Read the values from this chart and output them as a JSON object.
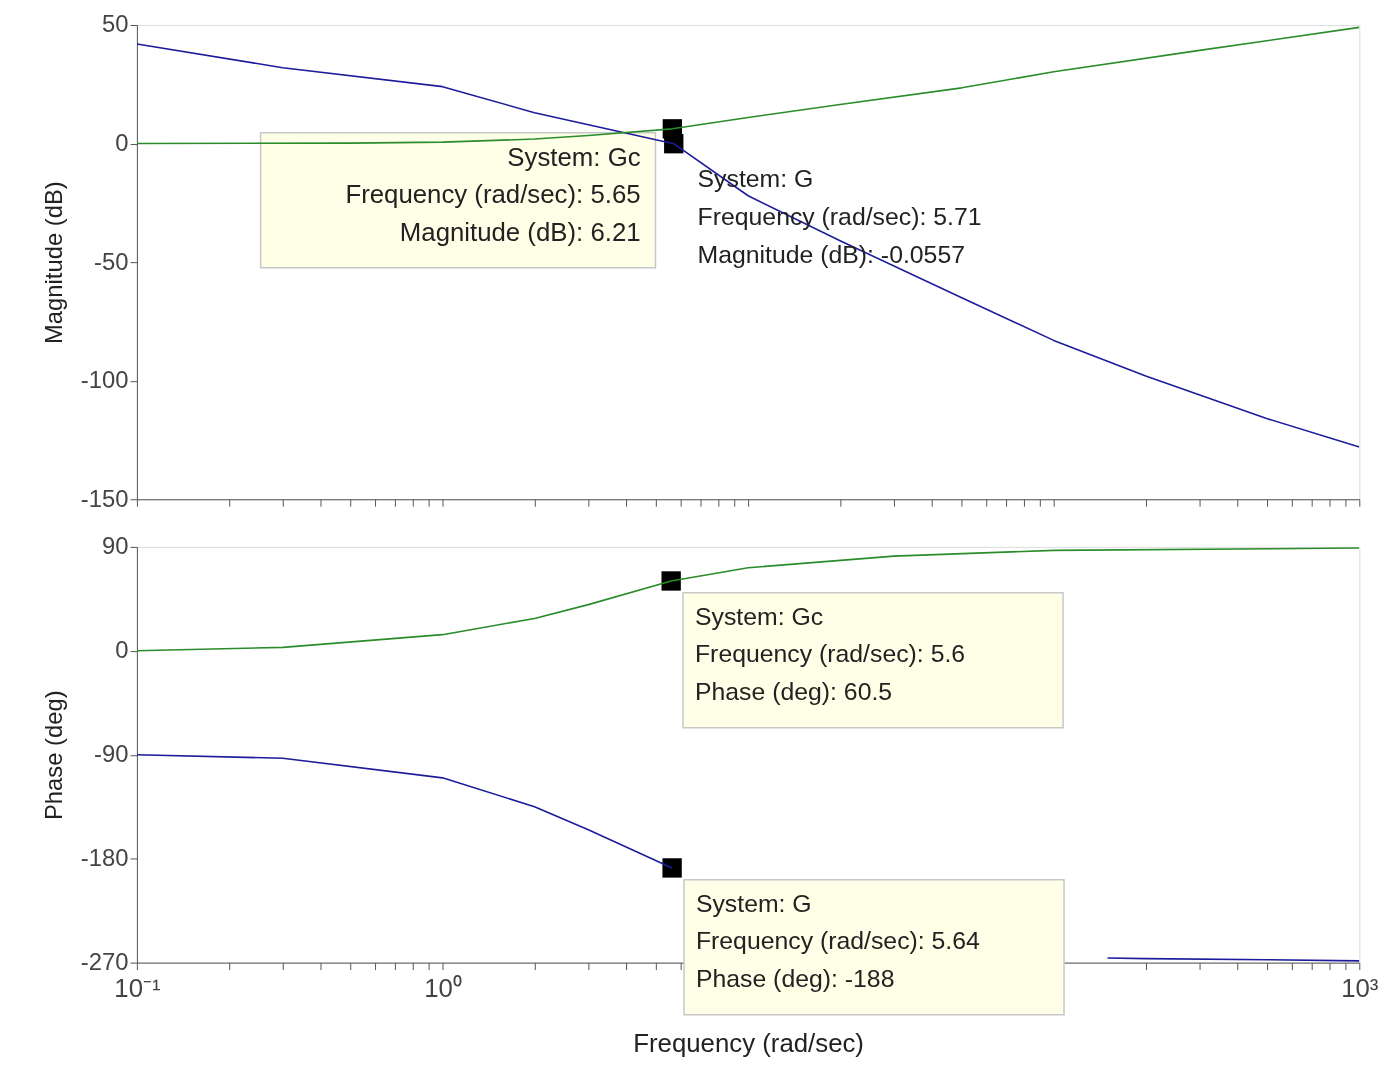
{
  "chart_data": [
    {
      "type": "line",
      "ylabel": "Magnitude (dB)",
      "log": "x",
      "xlim": [
        0.1,
        1000
      ],
      "ylim": [
        -150,
        50
      ],
      "xticks": [
        0.1,
        0.2,
        0.3,
        0.4,
        0.5,
        0.6,
        0.7,
        0.8,
        0.9,
        1,
        2,
        3,
        4,
        5,
        6,
        7,
        8,
        9,
        10,
        20,
        30,
        40,
        50,
        60,
        70,
        80,
        90,
        100,
        200,
        300,
        400,
        500,
        600,
        700,
        800,
        900,
        1000
      ],
      "yticks": [
        -150,
        -100,
        -50,
        0,
        50
      ],
      "tick_labels": "y",
      "grid": false,
      "legend": false,
      "marker": "none",
      "line_style": "solid",
      "series": [
        {
          "color": "#1c1c9c",
          "x": [
            0.1,
            0.3,
            1,
            2,
            5.71,
            10,
            20,
            50,
            100,
            200,
            500,
            1000
          ],
          "values": [
            42,
            32,
            24,
            13,
            -0.0557,
            -22,
            -41,
            -65,
            -83,
            -98,
            -116,
            -128
          ]
        },
        {
          "color": "#2a8c2a",
          "x": [
            0.1,
            0.5,
            1,
            2,
            3,
            5.65,
            10,
            20,
            50,
            100,
            300,
            1000
          ],
          "values": [
            0,
            0.2,
            0.6,
            1.9,
            3.4,
            6.21,
            11,
            16.5,
            23.5,
            30.3,
            39.3,
            49
          ]
        }
      ],
      "annotations": [
        {
          "text": "System: Gc\nFrequency (rad/sec): 5.65\nMagnitude (dB): 6.21",
          "x": 5.65,
          "y": 6.21
        },
        {
          "text": "System: G\nFrequency (rad/sec): 5.71\nMagnitude (dB): -0.0557",
          "x": 5.71,
          "y": -0.0557
        }
      ]
    },
    {
      "type": "line",
      "xlabel": "Frequency  (rad/sec)",
      "ylabel": "Phase (deg)",
      "log": "x",
      "xlim": [
        0.1,
        1000
      ],
      "ylim": [
        -270,
        90
      ],
      "xticks": [
        {
          "value": 0.1,
          "label": "10⁻¹"
        },
        {
          "value": 0.2,
          "label": null
        },
        {
          "value": 0.3,
          "label": null
        },
        {
          "value": 0.4,
          "label": null
        },
        {
          "value": 0.5,
          "label": null
        },
        {
          "value": 0.6,
          "label": null
        },
        {
          "value": 0.7,
          "label": null
        },
        {
          "value": 0.8,
          "label": null
        },
        {
          "value": 0.9,
          "label": null
        },
        {
          "value": 1,
          "label": "10⁰"
        },
        {
          "value": 2,
          "label": null
        },
        {
          "value": 3,
          "label": null
        },
        {
          "value": 4,
          "label": null
        },
        {
          "value": 5,
          "label": null
        },
        {
          "value": 6,
          "label": null
        },
        {
          "value": 7,
          "label": null
        },
        {
          "value": 8,
          "label": null
        },
        {
          "value": 9,
          "label": null
        },
        {
          "value": 10,
          "label": null
        },
        {
          "value": 20,
          "label": null
        },
        {
          "value": 30,
          "label": null
        },
        {
          "value": 40,
          "label": null
        },
        {
          "value": 50,
          "label": null
        },
        {
          "value": 60,
          "label": null
        },
        {
          "value": 70,
          "label": null
        },
        {
          "value": 80,
          "label": null
        },
        {
          "value": 90,
          "label": null
        },
        {
          "value": 100,
          "label": null
        },
        {
          "value": 200,
          "label": null
        },
        {
          "value": 300,
          "label": null
        },
        {
          "value": 400,
          "label": null
        },
        {
          "value": 500,
          "label": null
        },
        {
          "value": 600,
          "label": null
        },
        {
          "value": 700,
          "label": null
        },
        {
          "value": 800,
          "label": null
        },
        {
          "value": 900,
          "label": null
        },
        {
          "value": 1000,
          "label": "10³"
        }
      ],
      "yticks": [
        -270,
        -180,
        -90,
        0,
        90
      ],
      "grid": false,
      "legend": false,
      "marker": "none",
      "line_style": "solid",
      "series": [
        {
          "color": "#1c1c9c",
          "x": [
            0.1,
            0.3,
            1,
            2,
            3,
            5.64,
            10,
            50,
            150,
            200,
            500,
            1000
          ],
          "values": [
            -90,
            -93,
            -110,
            -135,
            -155,
            -188,
            null,
            null,
            -266,
            -266.5,
            -267.5,
            -268.5
          ]
        },
        {
          "color": "#2a8c2a",
          "x": [
            0.1,
            0.3,
            1,
            2,
            3,
            5.6,
            10,
            30,
            100,
            1000
          ],
          "values": [
            0,
            3,
            14,
            28,
            40,
            60.5,
            72,
            82,
            87,
            89
          ]
        }
      ],
      "annotations": [
        {
          "text": "System: Gc\nFrequency (rad/sec): 5.6\nPhase (deg): 60.5",
          "x": 5.6,
          "y": 60.5
        },
        {
          "text": "System: G\nFrequency (rad/sec): 5.64\nPhase (deg): -188",
          "x": 5.64,
          "y": -188
        }
      ]
    }
  ]
}
